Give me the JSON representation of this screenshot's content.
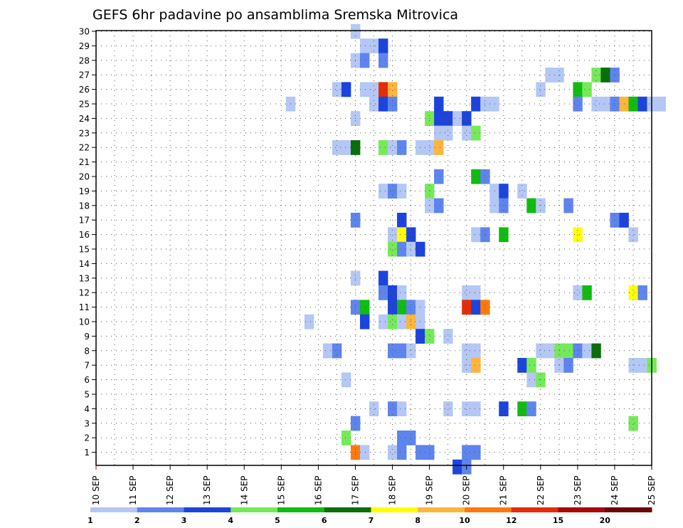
{
  "chart_data": {
    "type": "heatmap",
    "title": "GEFS 6hr padavine po ansamblima Sremska Mitrovica",
    "x_labels": [
      "10 SEP",
      "11 SEP",
      "12 SEP",
      "13 SEP",
      "14 SEP",
      "15 SEP",
      "16 SEP",
      "17 SEP",
      "18 SEP",
      "19 SEP",
      "20 SEP",
      "21 SEP",
      "22 SEP",
      "23 SEP",
      "24 SEP",
      "25 SEP"
    ],
    "y_labels": [
      "1",
      "2",
      "3",
      "4",
      "5",
      "6",
      "7",
      "8",
      "9",
      "10",
      "11",
      "12",
      "13",
      "14",
      "15",
      "16",
      "17",
      "18",
      "19",
      "20",
      "21",
      "22",
      "23",
      "24",
      "25",
      "26",
      "27",
      "28",
      "29",
      "30"
    ],
    "x_step_days": 0.25,
    "grid": true,
    "legend": {
      "boundaries": [
        "1",
        "2",
        "3",
        "4",
        "5",
        "6",
        "7",
        "8",
        "10",
        "12",
        "15",
        "20"
      ],
      "colors": [
        "#b4c7f5",
        "#5e84ee",
        "#1c44dc",
        "#75ea58",
        "#10bc10",
        "#0a6e0a",
        "#ffff00",
        "#ffb43c",
        "#ff7a0a",
        "#e62c06",
        "#a80808",
        "#6e0606"
      ]
    },
    "cells": [
      [
        7.0,
        30,
        "#b4c7f5"
      ],
      [
        7.25,
        29,
        "#b4c7f5"
      ],
      [
        7.5,
        29,
        "#b4c7f5"
      ],
      [
        7.75,
        29,
        "#1c44dc"
      ],
      [
        7.0,
        28,
        "#b4c7f5"
      ],
      [
        7.25,
        28,
        "#5e84ee"
      ],
      [
        7.75,
        28,
        "#5e84ee"
      ],
      [
        12.25,
        27,
        "#b4c7f5"
      ],
      [
        12.5,
        27,
        "#b4c7f5"
      ],
      [
        13.5,
        27,
        "#75ea58"
      ],
      [
        13.75,
        27,
        "#0a6e0a"
      ],
      [
        14.0,
        27,
        "#5e84ee"
      ],
      [
        6.5,
        26,
        "#b4c7f5"
      ],
      [
        6.75,
        26,
        "#1c44dc"
      ],
      [
        7.25,
        26,
        "#b4c7f5"
      ],
      [
        7.5,
        26,
        "#b4c7f5"
      ],
      [
        7.75,
        26,
        "#e62c06"
      ],
      [
        8.0,
        26,
        "#ffb43c"
      ],
      [
        12.0,
        26,
        "#b4c7f5"
      ],
      [
        13.0,
        26,
        "#10bc10"
      ],
      [
        13.25,
        26,
        "#75ea58"
      ],
      [
        5.25,
        25,
        "#b4c7f5"
      ],
      [
        7.5,
        25,
        "#b4c7f5"
      ],
      [
        7.75,
        25,
        "#1c44dc"
      ],
      [
        8.0,
        25,
        "#5e84ee"
      ],
      [
        9.25,
        25,
        "#1c44dc"
      ],
      [
        10.25,
        25,
        "#1c44dc"
      ],
      [
        10.5,
        25,
        "#b4c7f5"
      ],
      [
        10.75,
        25,
        "#b4c7f5"
      ],
      [
        13.0,
        25,
        "#5e84ee"
      ],
      [
        13.5,
        25,
        "#b4c7f5"
      ],
      [
        13.75,
        25,
        "#b4c7f5"
      ],
      [
        14.0,
        25,
        "#5e84ee"
      ],
      [
        14.25,
        25,
        "#ffb43c"
      ],
      [
        14.5,
        25,
        "#10bc10"
      ],
      [
        14.75,
        25,
        "#1c44dc"
      ],
      [
        15.0,
        25,
        "#b4c7f5"
      ],
      [
        15.25,
        25,
        "#b4c7f5"
      ],
      [
        7.0,
        24,
        "#b4c7f5"
      ],
      [
        9.0,
        24,
        "#75ea58"
      ],
      [
        9.25,
        24,
        "#1c44dc"
      ],
      [
        9.5,
        24,
        "#1c44dc"
      ],
      [
        9.75,
        24,
        "#b4c7f5"
      ],
      [
        10.0,
        24,
        "#1c44dc"
      ],
      [
        9.25,
        23,
        "#b4c7f5"
      ],
      [
        9.5,
        23,
        "#b4c7f5"
      ],
      [
        10.0,
        23,
        "#b4c7f5"
      ],
      [
        10.25,
        23,
        "#75ea58"
      ],
      [
        6.5,
        22,
        "#b4c7f5"
      ],
      [
        6.75,
        22,
        "#b4c7f5"
      ],
      [
        7.0,
        22,
        "#0a6e0a"
      ],
      [
        7.75,
        22,
        "#75ea58"
      ],
      [
        8.0,
        22,
        "#b4c7f5"
      ],
      [
        8.25,
        22,
        "#5e84ee"
      ],
      [
        8.75,
        22,
        "#b4c7f5"
      ],
      [
        9.0,
        22,
        "#b4c7f5"
      ],
      [
        9.25,
        22,
        "#ffb43c"
      ],
      [
        9.25,
        20,
        "#5e84ee"
      ],
      [
        10.25,
        20,
        "#10bc10"
      ],
      [
        10.5,
        20,
        "#5e84ee"
      ],
      [
        7.75,
        19,
        "#b4c7f5"
      ],
      [
        8.0,
        19,
        "#5e84ee"
      ],
      [
        8.25,
        19,
        "#b4c7f5"
      ],
      [
        9.0,
        19,
        "#75ea58"
      ],
      [
        10.75,
        19,
        "#b4c7f5"
      ],
      [
        11.0,
        19,
        "#1c44dc"
      ],
      [
        11.5,
        19,
        "#b4c7f5"
      ],
      [
        9.0,
        18,
        "#b4c7f5"
      ],
      [
        9.25,
        18,
        "#5e84ee"
      ],
      [
        10.75,
        18,
        "#b4c7f5"
      ],
      [
        11.0,
        18,
        "#5e84ee"
      ],
      [
        11.75,
        18,
        "#10bc10"
      ],
      [
        12.0,
        18,
        "#b4c7f5"
      ],
      [
        12.75,
        18,
        "#5e84ee"
      ],
      [
        7.0,
        17,
        "#5e84ee"
      ],
      [
        8.25,
        17,
        "#1c44dc"
      ],
      [
        14.0,
        17,
        "#5e84ee"
      ],
      [
        14.25,
        17,
        "#1c44dc"
      ],
      [
        8.0,
        16,
        "#b4c7f5"
      ],
      [
        8.25,
        16,
        "#ffff00"
      ],
      [
        8.5,
        16,
        "#1c44dc"
      ],
      [
        10.25,
        16,
        "#b4c7f5"
      ],
      [
        10.5,
        16,
        "#5e84ee"
      ],
      [
        11.0,
        16,
        "#10bc10"
      ],
      [
        13.0,
        16,
        "#ffff00"
      ],
      [
        14.5,
        16,
        "#b4c7f5"
      ],
      [
        8.0,
        15,
        "#75ea58"
      ],
      [
        8.25,
        15,
        "#5e84ee"
      ],
      [
        8.5,
        15,
        "#b4c7f5"
      ],
      [
        8.75,
        15,
        "#1c44dc"
      ],
      [
        7.0,
        13,
        "#b4c7f5"
      ],
      [
        7.75,
        13,
        "#1c44dc"
      ],
      [
        7.75,
        12,
        "#5e84ee"
      ],
      [
        8.0,
        12,
        "#1c44dc"
      ],
      [
        8.25,
        12,
        "#b4c7f5"
      ],
      [
        10.0,
        12,
        "#b4c7f5"
      ],
      [
        10.25,
        12,
        "#b4c7f5"
      ],
      [
        13.0,
        12,
        "#b4c7f5"
      ],
      [
        13.25,
        12,
        "#10bc10"
      ],
      [
        14.5,
        12,
        "#ffff00"
      ],
      [
        14.75,
        12,
        "#5e84ee"
      ],
      [
        7.0,
        11,
        "#5e84ee"
      ],
      [
        7.25,
        11,
        "#10bc10"
      ],
      [
        8.0,
        11,
        "#1c44dc"
      ],
      [
        8.25,
        11,
        "#10bc10"
      ],
      [
        8.5,
        11,
        "#5e84ee"
      ],
      [
        8.75,
        11,
        "#b4c7f5"
      ],
      [
        10.0,
        11,
        "#e62c06"
      ],
      [
        10.25,
        11,
        "#1c44dc"
      ],
      [
        10.5,
        11,
        "#ff7a0a"
      ],
      [
        5.75,
        10,
        "#b4c7f5"
      ],
      [
        7.25,
        10,
        "#1c44dc"
      ],
      [
        7.75,
        10,
        "#b4c7f5"
      ],
      [
        8.0,
        10,
        "#75ea58"
      ],
      [
        8.25,
        10,
        "#b4c7f5"
      ],
      [
        8.5,
        10,
        "#ffb43c"
      ],
      [
        8.75,
        10,
        "#b4c7f5"
      ],
      [
        8.75,
        9,
        "#1c44dc"
      ],
      [
        9.0,
        9,
        "#75ea58"
      ],
      [
        9.5,
        9,
        "#b4c7f5"
      ],
      [
        6.25,
        8,
        "#b4c7f5"
      ],
      [
        6.5,
        8,
        "#5e84ee"
      ],
      [
        8.0,
        8,
        "#5e84ee"
      ],
      [
        8.25,
        8,
        "#5e84ee"
      ],
      [
        8.5,
        8,
        "#b4c7f5"
      ],
      [
        10.0,
        8,
        "#b4c7f5"
      ],
      [
        10.25,
        8,
        "#b4c7f5"
      ],
      [
        12.0,
        8,
        "#b4c7f5"
      ],
      [
        12.25,
        8,
        "#b4c7f5"
      ],
      [
        12.5,
        8,
        "#75ea58"
      ],
      [
        12.75,
        8,
        "#75ea58"
      ],
      [
        13.0,
        8,
        "#5e84ee"
      ],
      [
        13.25,
        8,
        "#b4c7f5"
      ],
      [
        13.5,
        8,
        "#0a6e0a"
      ],
      [
        10.0,
        7,
        "#b4c7f5"
      ],
      [
        10.25,
        7,
        "#ffb43c"
      ],
      [
        11.5,
        7,
        "#1c44dc"
      ],
      [
        11.75,
        7,
        "#75ea58"
      ],
      [
        12.5,
        7,
        "#b4c7f5"
      ],
      [
        12.75,
        7,
        "#5e84ee"
      ],
      [
        14.5,
        7,
        "#b4c7f5"
      ],
      [
        14.75,
        7,
        "#b4c7f5"
      ],
      [
        15.0,
        7,
        "#75ea58"
      ],
      [
        6.75,
        6,
        "#b4c7f5"
      ],
      [
        11.75,
        6,
        "#b4c7f5"
      ],
      [
        12.0,
        6,
        "#75ea58"
      ],
      [
        7.5,
        4,
        "#b4c7f5"
      ],
      [
        8.0,
        4,
        "#5e84ee"
      ],
      [
        8.25,
        4,
        "#b4c7f5"
      ],
      [
        9.5,
        4,
        "#b4c7f5"
      ],
      [
        10.0,
        4,
        "#b4c7f5"
      ],
      [
        10.25,
        4,
        "#b4c7f5"
      ],
      [
        11.0,
        4,
        "#1c44dc"
      ],
      [
        11.5,
        4,
        "#10bc10"
      ],
      [
        11.75,
        4,
        "#5e84ee"
      ],
      [
        7.0,
        3,
        "#5e84ee"
      ],
      [
        14.5,
        3,
        "#75ea58"
      ],
      [
        6.75,
        2,
        "#75ea58"
      ],
      [
        8.25,
        2,
        "#5e84ee"
      ],
      [
        8.5,
        2,
        "#5e84ee"
      ],
      [
        7.0,
        1,
        "#ff7a0a"
      ],
      [
        7.25,
        1,
        "#b4c7f5"
      ],
      [
        8.0,
        1,
        "#b4c7f5"
      ],
      [
        8.25,
        1,
        "#5e84ee"
      ],
      [
        8.75,
        1,
        "#5e84ee"
      ],
      [
        9.0,
        1,
        "#5e84ee"
      ],
      [
        10.0,
        1,
        "#5e84ee"
      ],
      [
        10.25,
        1,
        "#5e84ee"
      ],
      [
        9.75,
        0,
        "#1c44dc"
      ],
      [
        10.0,
        0,
        "#5e84ee"
      ]
    ]
  }
}
